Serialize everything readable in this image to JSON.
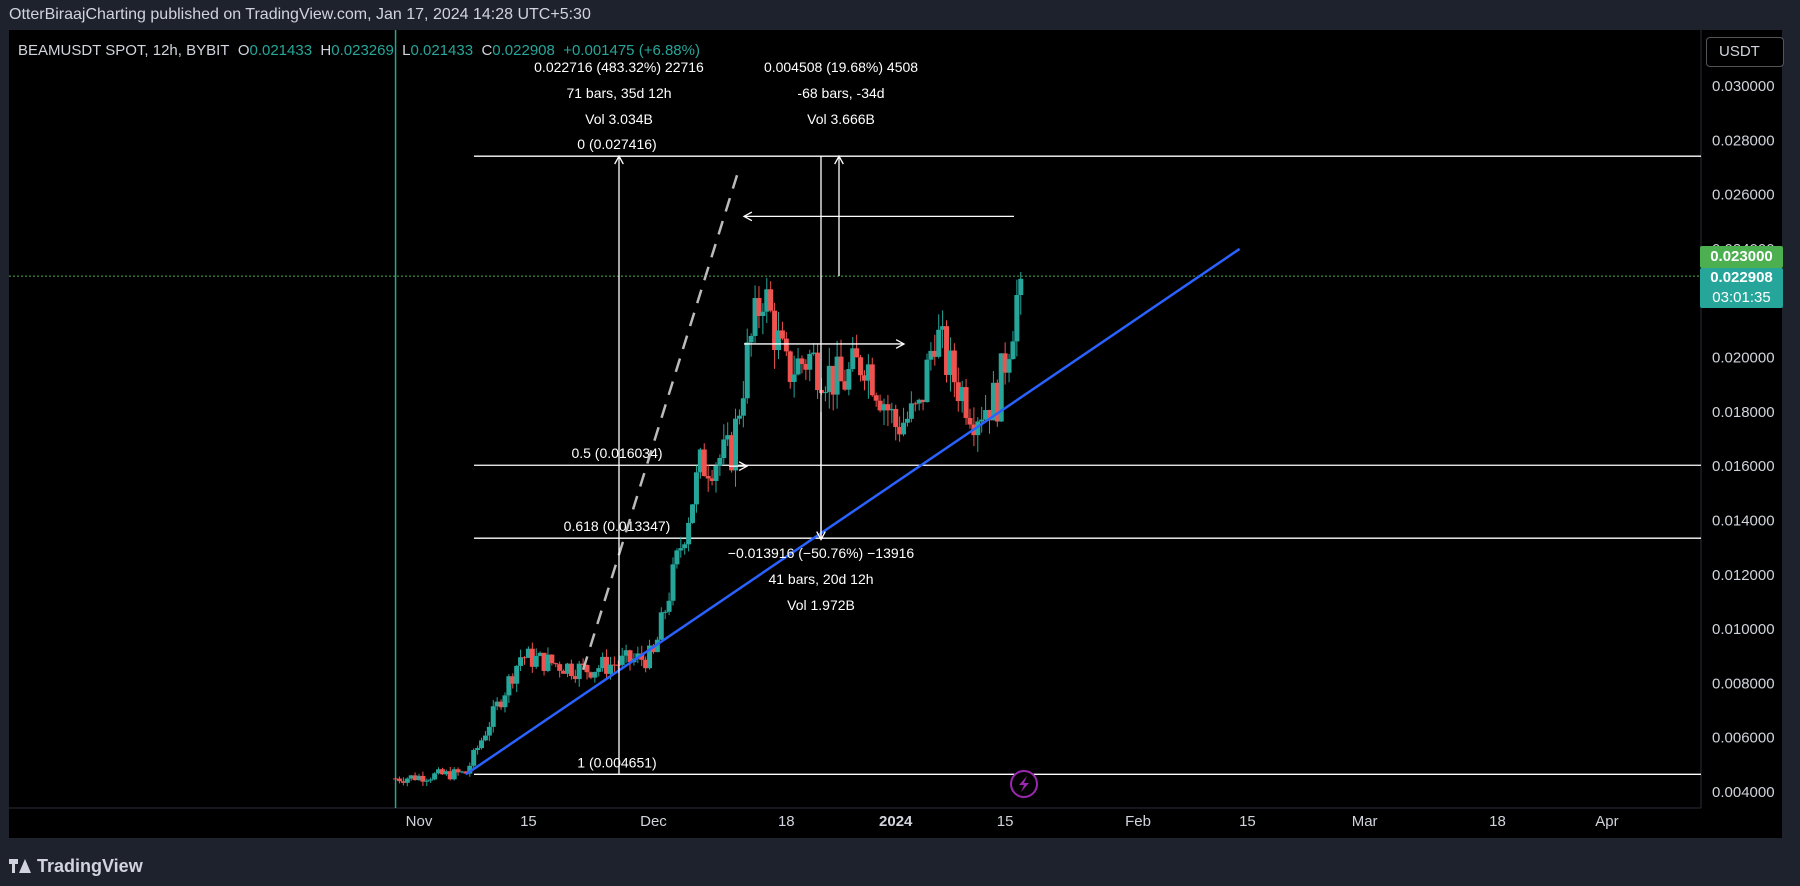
{
  "header": {
    "published_line": "OtterBiraajCharting published on TradingView.com, Jan 17, 2024 14:28 UTC+5:30"
  },
  "legend": {
    "symbol": "BEAMUSDT SPOT, 12h, BYBIT",
    "open_label": "O",
    "open": "0.021433",
    "high_label": "H",
    "high": "0.023269",
    "low_label": "L",
    "low": "0.021433",
    "close_label": "C",
    "close": "0.022908",
    "change": "+0.001475 (+6.88%)"
  },
  "currency_button": "USDT",
  "price_tags": {
    "alert_price": "0.023000",
    "last_price": "0.022908",
    "countdown": "03:01:35"
  },
  "footer": {
    "brand": "TradingView"
  },
  "colors": {
    "up": "#26a69a",
    "down": "#ef5350",
    "trendline": "#2962ff",
    "alert_tag": "#4caf50",
    "last_tag": "#26a69a",
    "alert_icon": "#9c27b0"
  },
  "chart_data": {
    "type": "candlestick",
    "title": "",
    "y_axis": {
      "ticks": [
        "0.030000",
        "0.028000",
        "0.026000",
        "0.024000",
        "0.022000",
        "0.020000",
        "0.018000",
        "0.016000",
        "0.014000",
        "0.012000",
        "0.010000",
        "0.008000",
        "0.006000",
        "0.004000"
      ],
      "tick_values": [
        0.03,
        0.028,
        0.026,
        0.024,
        0.022,
        0.02,
        0.018,
        0.016,
        0.014,
        0.012,
        0.01,
        0.008,
        0.006,
        0.004
      ],
      "range": [
        0.0036,
        0.0312
      ]
    },
    "x_axis": {
      "ticks": [
        "Nov",
        "15",
        "Dec",
        "18",
        "2024",
        "15",
        "Feb",
        "15",
        "Mar",
        "18",
        "Apr"
      ],
      "tick_dates": [
        "2023-11-01",
        "2023-11-15",
        "2023-12-01",
        "2023-12-18",
        "2024-01-01",
        "2024-01-15",
        "2024-02-01",
        "2024-02-15",
        "2024-03-01",
        "2024-03-18",
        "2024-04-01"
      ]
    },
    "series_anchor_dates": [
      "2023-10-29",
      "2023-11-07",
      "2023-11-14",
      "2023-11-22",
      "2023-12-01",
      "2023-12-07",
      "2023-12-11",
      "2023-12-13",
      "2023-12-15",
      "2023-12-18",
      "2023-12-21",
      "2023-12-25",
      "2023-12-28",
      "2024-01-01",
      "2024-01-04",
      "2024-01-06",
      "2024-01-08",
      "2024-01-11",
      "2024-01-14",
      "2024-01-17"
    ],
    "series_anchor_prices": [
      0.0045,
      0.0047,
      0.009,
      0.0085,
      0.009,
      0.016,
      0.0165,
      0.02,
      0.0225,
      0.0195,
      0.02,
      0.019,
      0.02,
      0.0175,
      0.018,
      0.021,
      0.0195,
      0.018,
      0.0185,
      0.0229
    ],
    "fib_levels": [
      {
        "label": "0 (0.027416)",
        "value": 0.027416
      },
      {
        "label": "0.5 (0.016034)",
        "value": 0.016034
      },
      {
        "label": "0.618 (0.013347)",
        "value": 0.013347
      },
      {
        "label": "1 (0.004651)",
        "value": 0.004651
      }
    ],
    "measure_annotations": [
      {
        "lines": [
          "0.022716 (483.32%) 22716",
          "71 bars, 35d 12h",
          "Vol 3.034B"
        ]
      },
      {
        "lines": [
          "0.004508 (19.68%) 4508",
          "-68 bars, -34d",
          "Vol 3.666B"
        ]
      },
      {
        "lines": [
          "−0.013916 (−50.76%) −13916",
          "41 bars, 20d 12h",
          "Vol 1.972B"
        ]
      }
    ],
    "trendline": {
      "start": {
        "date": "2023-11-07",
        "price": 0.00465
      },
      "end": {
        "date": "2024-02-14",
        "price": 0.024
      }
    },
    "horizontal_price_line": 0.023,
    "vertical_line_date": "2023-10-29",
    "grid": false
  }
}
